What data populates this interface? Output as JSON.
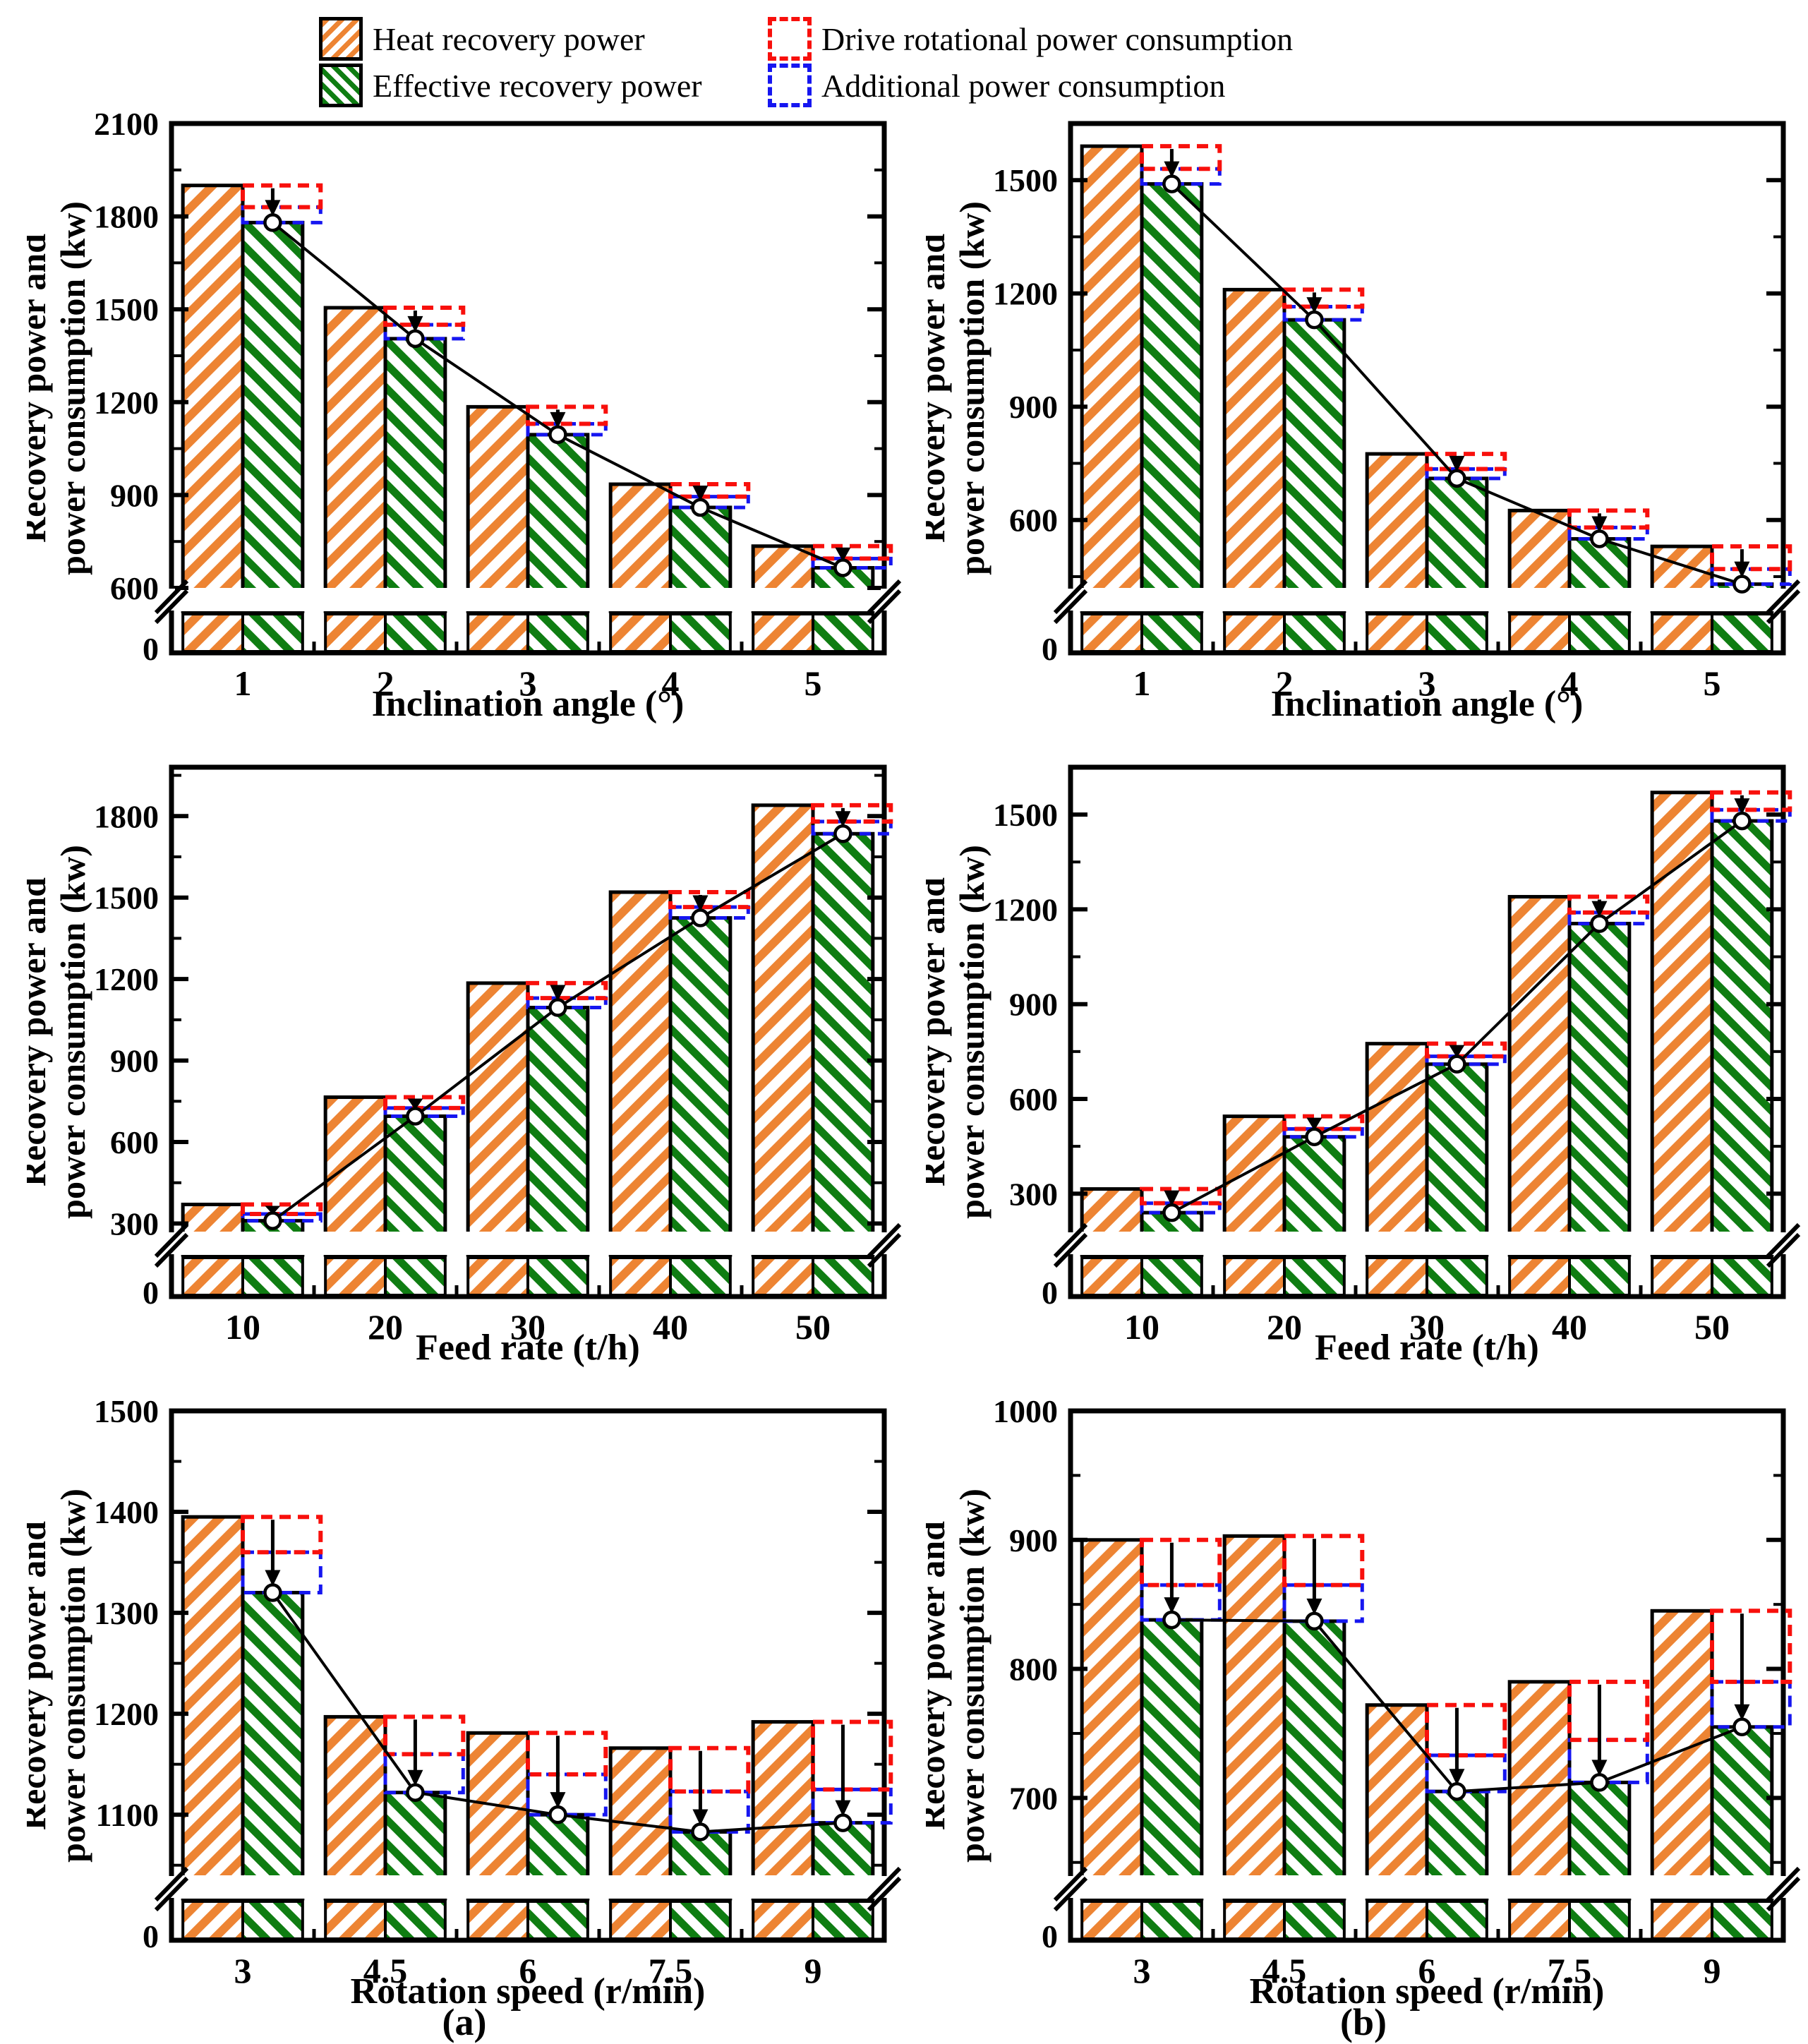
{
  "colors": {
    "heat_orange": "#ED8433",
    "effective_green": "#0F7D12",
    "drive_red": "#F8100C",
    "additional_blue": "#1616F0",
    "line_black": "#000000"
  },
  "legend": {
    "items": [
      {
        "label": "Heat recovery power",
        "swatch": "hatch-orange"
      },
      {
        "label": "Effective recovery power",
        "swatch": "hatch-green"
      },
      {
        "label": "Drive rotational power consumption",
        "swatch": "dashed-red"
      },
      {
        "label": "Additional power consumption",
        "swatch": "dashed-blue"
      }
    ]
  },
  "captions": {
    "a": "(a)",
    "b": "(b)"
  },
  "chart_data": [
    {
      "type": "bar",
      "id": "inclination-a",
      "xlabel": "Inclination angle (°)",
      "ylabel": [
        "Recovery power and",
        "power consumption (kw)"
      ],
      "categories": [
        "1",
        "2",
        "3",
        "4",
        "5"
      ],
      "series": [
        {
          "name": "Heat recovery power",
          "values": [
            1900,
            1505,
            1185,
            935,
            735
          ]
        },
        {
          "name": "Effective recovery power",
          "values": [
            1780,
            1405,
            1095,
            860,
            665
          ]
        },
        {
          "name": "Additional power consumption",
          "values": [
            50,
            45,
            35,
            35,
            30
          ]
        },
        {
          "name": "Drive rotational power consumption",
          "values": [
            70,
            55,
            55,
            40,
            40
          ]
        }
      ],
      "marker_line_follows": "Effective recovery power",
      "yaxis": {
        "top": 2100,
        "bottom": 600,
        "major_ticks": [
          600,
          900,
          1200,
          1500,
          1800,
          2100
        ],
        "minor_step": 150,
        "axis_break": true,
        "zero_label": "0"
      }
    },
    {
      "type": "bar",
      "id": "inclination-b",
      "xlabel": "Inclination angle (°)",
      "ylabel": [
        "Recovery power and",
        "power consumption (kw)"
      ],
      "categories": [
        "1",
        "2",
        "3",
        "4",
        "5"
      ],
      "series": [
        {
          "name": "Heat recovery power",
          "values": [
            1590,
            1210,
            775,
            625,
            530
          ]
        },
        {
          "name": "Effective recovery power",
          "values": [
            1490,
            1130,
            710,
            550,
            430
          ]
        },
        {
          "name": "Additional power consumption",
          "values": [
            40,
            35,
            25,
            30,
            40
          ]
        },
        {
          "name": "Drive rotational power consumption",
          "values": [
            60,
            45,
            40,
            45,
            60
          ]
        }
      ],
      "marker_line_follows": "Effective recovery power",
      "yaxis": {
        "top": 1650,
        "bottom": 420,
        "major_ticks": [
          600,
          900,
          1200,
          1500
        ],
        "minor_step": 150,
        "axis_break": true,
        "zero_label": "0"
      }
    },
    {
      "type": "bar",
      "id": "feedrate-a",
      "xlabel": "Feed rate (t/h)",
      "ylabel": [
        "Recovery power and",
        "power consumption (kw)"
      ],
      "categories": [
        "10",
        "20",
        "30",
        "40",
        "50"
      ],
      "series": [
        {
          "name": "Heat recovery power",
          "values": [
            370,
            765,
            1185,
            1520,
            1840
          ]
        },
        {
          "name": "Effective recovery power",
          "values": [
            310,
            695,
            1095,
            1425,
            1735
          ]
        },
        {
          "name": "Additional power consumption",
          "values": [
            25,
            30,
            35,
            40,
            45
          ]
        },
        {
          "name": "Drive rotational power consumption",
          "values": [
            35,
            40,
            55,
            55,
            60
          ]
        }
      ],
      "marker_line_follows": "Effective recovery power",
      "yaxis": {
        "top": 1980,
        "bottom": 270,
        "major_ticks": [
          300,
          600,
          900,
          1200,
          1500,
          1800
        ],
        "minor_step": 150,
        "axis_break": true,
        "zero_label": "0"
      }
    },
    {
      "type": "bar",
      "id": "feedrate-b",
      "xlabel": "Feed rate (t/h)",
      "ylabel": [
        "Recovery power and",
        "power consumption (kw)"
      ],
      "categories": [
        "10",
        "20",
        "30",
        "40",
        "50"
      ],
      "series": [
        {
          "name": "Heat recovery power",
          "values": [
            315,
            545,
            775,
            1240,
            1570
          ]
        },
        {
          "name": "Effective recovery power",
          "values": [
            240,
            480,
            710,
            1155,
            1480
          ]
        },
        {
          "name": "Additional power consumption",
          "values": [
            30,
            25,
            25,
            35,
            35
          ]
        },
        {
          "name": "Drive rotational power consumption",
          "values": [
            45,
            40,
            40,
            50,
            55
          ]
        }
      ],
      "marker_line_follows": "Effective recovery power",
      "yaxis": {
        "top": 1650,
        "bottom": 180,
        "major_ticks": [
          300,
          600,
          900,
          1200,
          1500
        ],
        "minor_step": 150,
        "axis_break": true,
        "zero_label": "0"
      }
    },
    {
      "type": "bar",
      "id": "rotation-a",
      "xlabel": "Rotation speed (r/min)",
      "ylabel": [
        "Recovery power and",
        "power consumption (kw)"
      ],
      "categories": [
        "3",
        "4.5",
        "6",
        "7.5",
        "9"
      ],
      "series": [
        {
          "name": "Heat recovery power",
          "values": [
            1395,
            1197,
            1181,
            1166,
            1192
          ]
        },
        {
          "name": "Effective recovery power",
          "values": [
            1320,
            1122,
            1100,
            1083,
            1092
          ]
        },
        {
          "name": "Additional power consumption",
          "values": [
            40,
            38,
            40,
            40,
            33
          ]
        },
        {
          "name": "Drive rotational power consumption",
          "values": [
            35,
            37,
            41,
            43,
            67
          ]
        }
      ],
      "marker_line_follows": "Effective recovery power",
      "yaxis": {
        "top": 1500,
        "bottom": 1040,
        "major_ticks": [
          1100,
          1200,
          1300,
          1400,
          1500
        ],
        "minor_step": 50,
        "axis_break": true,
        "zero_label": "0"
      }
    },
    {
      "type": "bar",
      "id": "rotation-b",
      "xlabel": "Rotation speed (r/min)",
      "ylabel": [
        "Recovery power and",
        "power consumption (kw)"
      ],
      "categories": [
        "3",
        "4.5",
        "6",
        "7.5",
        "9"
      ],
      "series": [
        {
          "name": "Heat recovery power",
          "values": [
            900,
            903,
            772,
            790,
            845
          ]
        },
        {
          "name": "Effective recovery power",
          "values": [
            838,
            837,
            705,
            712,
            755
          ]
        },
        {
          "name": "Additional power consumption",
          "values": [
            27,
            28,
            28,
            33,
            35
          ]
        },
        {
          "name": "Drive rotational power consumption",
          "values": [
            35,
            38,
            39,
            45,
            55
          ]
        }
      ],
      "marker_line_follows": "Effective recovery power",
      "yaxis": {
        "top": 1000,
        "bottom": 640,
        "major_ticks": [
          700,
          800,
          900,
          1000
        ],
        "minor_step": 50,
        "axis_break": true,
        "zero_label": "0"
      }
    }
  ]
}
